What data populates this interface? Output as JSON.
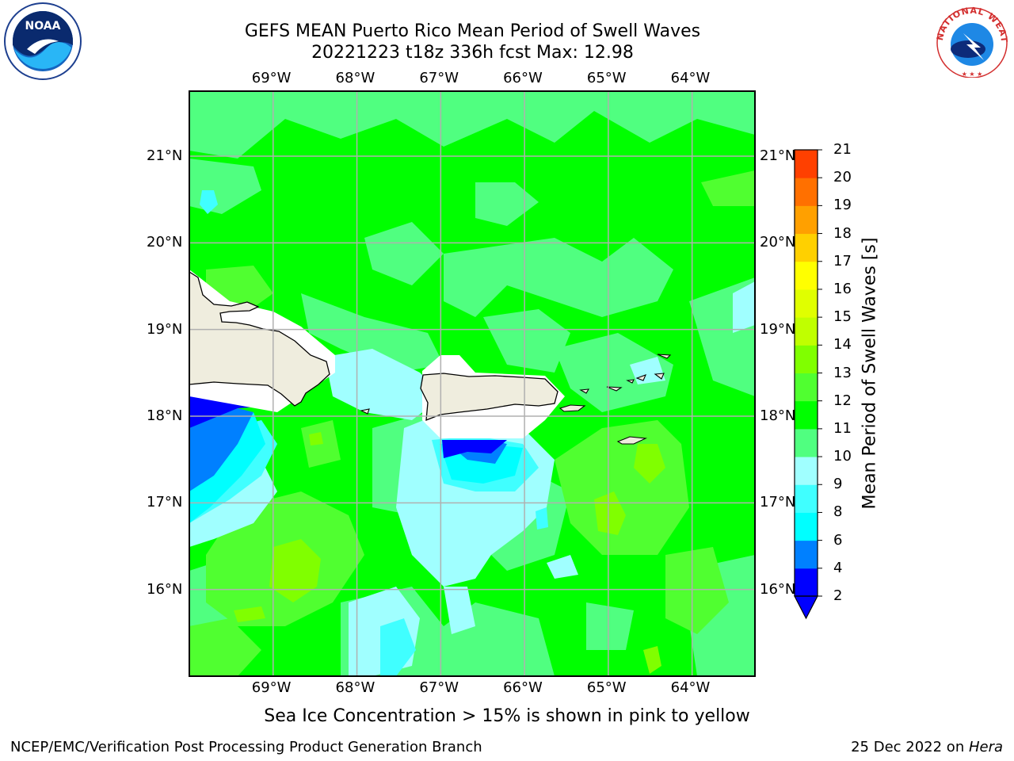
{
  "header": {
    "title_line1": "GEFS MEAN Puerto Rico Mean Period of Swell Waves",
    "title_line2": "20221223 t18z 336h fcst   Max: 12.98"
  },
  "logos": {
    "left": {
      "icon": "noaa-logo",
      "text": "NOAA"
    },
    "right": {
      "icon": "national-weather-service-logo",
      "text": "NATIONAL WEATHER SERVICE"
    }
  },
  "map": {
    "lon_labels": [
      "69°W",
      "68°W",
      "67°W",
      "66°W",
      "65°W",
      "64°W"
    ],
    "lat_labels": [
      "21°N",
      "20°N",
      "19°N",
      "18°N",
      "17°N",
      "16°N"
    ],
    "lon_range": [
      -70.0,
      -63.25
    ],
    "lat_range": [
      15.0,
      21.75
    ],
    "land_color": "#efedde",
    "grid_color": "#b0b0b0"
  },
  "colorbar": {
    "label": "Mean Period of Swell Waves [s]",
    "ticks": [
      "2",
      "4",
      "6",
      "8",
      "9",
      "10",
      "11",
      "12",
      "13",
      "14",
      "15",
      "16",
      "17",
      "18",
      "19",
      "20",
      "21"
    ],
    "colors": [
      "#0000ff",
      "#0080ff",
      "#00ffff",
      "#40ffff",
      "#a0ffff",
      "#50ff80",
      "#00ff00",
      "#50ff30",
      "#80ff00",
      "#c0ff00",
      "#e0ff00",
      "#ffff00",
      "#ffd000",
      "#ffa000",
      "#ff7000",
      "#ff4000",
      "#ff0000"
    ],
    "under_color": "#0000ff"
  },
  "footer": {
    "note": "Sea Ice Concentration > 15% is shown in pink to yellow",
    "credit": "NCEP/EMC/Verification Post Processing Product Generation Branch",
    "date": "25 Dec 2022 on ",
    "machine": "Hera"
  }
}
